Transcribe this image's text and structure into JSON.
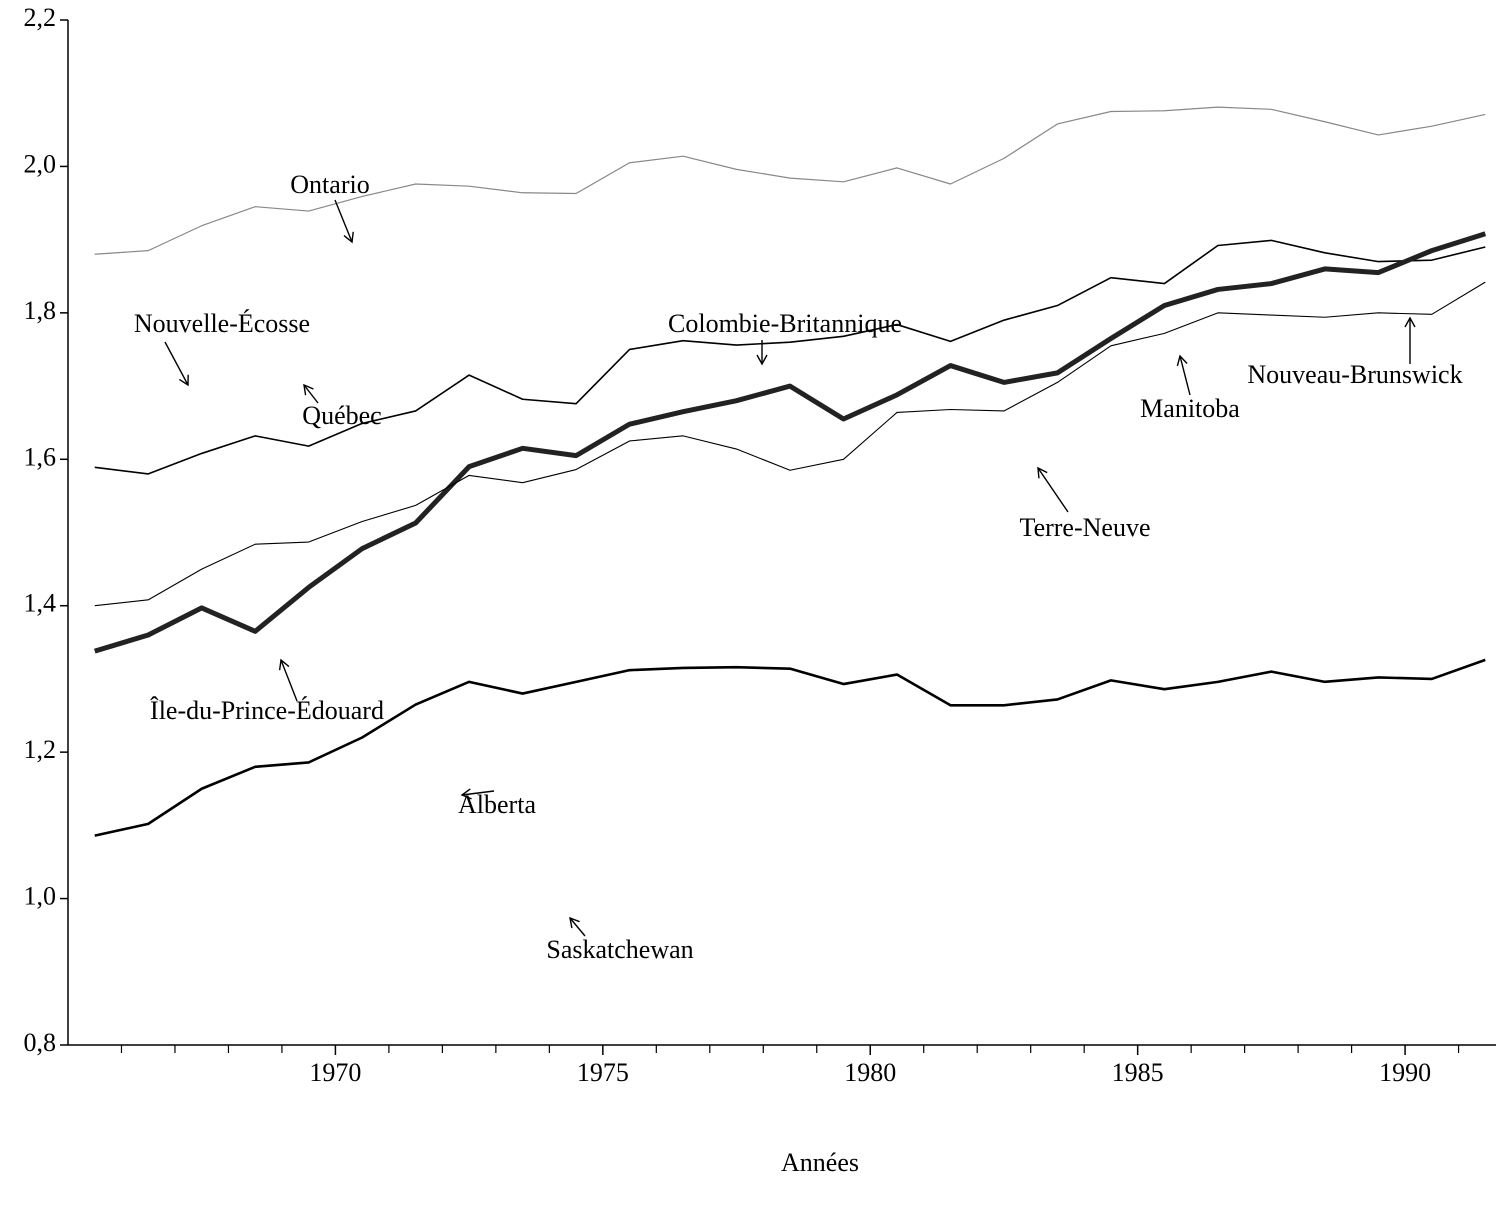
{
  "chart_data": {
    "type": "line",
    "xlabel": "Années",
    "x": [
      1965.5,
      1966.5,
      1967.5,
      1968.5,
      1969.5,
      1970.5,
      1971.5,
      1972.5,
      1973.5,
      1974.5,
      1975.5,
      1976.5,
      1977.5,
      1978.5,
      1979.5,
      1980.5,
      1981.5,
      1982.5,
      1983.5,
      1984.5,
      1985.5,
      1986.5,
      1987.5,
      1988.5,
      1989.5,
      1990.5,
      1991.5
    ],
    "series": [
      {
        "color": "#888888",
        "width": 1.2,
        "values": [
          1.88,
          1.885,
          1.919,
          1.945,
          1.939,
          1.959,
          1.976,
          1.973,
          1.964,
          1.963,
          2.005,
          2.014,
          1.996,
          1.984,
          1.979,
          1.998,
          1.976,
          2.011,
          2.058,
          2.075,
          2.076,
          2.081,
          2.078,
          2.061,
          2.043,
          2.055,
          2.071
        ]
      },
      {
        "color": "#000000",
        "width": 1.6,
        "values": [
          1.589,
          1.58,
          1.608,
          1.632,
          1.618,
          1.649,
          1.666,
          1.715,
          1.682,
          1.676,
          1.75,
          1.762,
          1.756,
          1.76,
          1.768,
          1.784,
          1.761,
          1.79,
          1.81,
          1.848,
          1.84,
          1.892,
          1.899,
          1.882,
          1.87,
          1.872,
          1.89
        ]
      },
      {
        "color": "#222222",
        "width": 5,
        "values": [
          1.338,
          1.36,
          1.397,
          1.365,
          1.425,
          1.478,
          1.513,
          1.59,
          1.615,
          1.605,
          1.648,
          1.665,
          1.68,
          1.7,
          1.655,
          1.688,
          1.728,
          1.705,
          1.718,
          1.765,
          1.81,
          1.832,
          1.84,
          1.86,
          1.855,
          1.885,
          1.908
        ]
      },
      {
        "color": "#000000",
        "width": 1.1,
        "values": [
          1.4,
          1.408,
          1.45,
          1.484,
          1.487,
          1.515,
          1.537,
          1.578,
          1.568,
          1.586,
          1.625,
          1.632,
          1.614,
          1.585,
          1.6,
          1.664,
          1.668,
          1.666,
          1.705,
          1.755,
          1.772,
          1.8,
          1.797,
          1.794,
          1.8,
          1.798,
          1.842
        ]
      },
      {
        "color": "#000000",
        "width": 2.6,
        "values": [
          1.086,
          1.102,
          1.15,
          1.18,
          1.186,
          1.22,
          1.265,
          1.296,
          1.28,
          1.296,
          1.312,
          1.315,
          1.316,
          1.314,
          1.293,
          1.306,
          1.264,
          1.264,
          1.272,
          1.298,
          1.286,
          1.296,
          1.31,
          1.296,
          1.302,
          1.3,
          1.326
        ]
      }
    ],
    "xlim": [
      1965,
      1991.7
    ],
    "xticks": [
      1970,
      1975,
      1980,
      1985,
      1990
    ],
    "xminorticks": [
      1966,
      1967,
      1968,
      1969,
      1971,
      1972,
      1973,
      1974,
      1976,
      1977,
      1978,
      1979,
      1981,
      1982,
      1983,
      1984,
      1986,
      1987,
      1988,
      1989,
      1991
    ],
    "ylim": [
      0.8,
      2.2
    ],
    "yticks": [
      {
        "value": 0.8,
        "label": "0,8"
      },
      {
        "value": 1.0,
        "label": "1,0"
      },
      {
        "value": 1.2,
        "label": "1,2"
      },
      {
        "value": 1.4,
        "label": "1,4"
      },
      {
        "value": 1.6,
        "label": "1,6"
      },
      {
        "value": 1.8,
        "label": "1,8"
      },
      {
        "value": 2.0,
        "label": "2,0"
      },
      {
        "value": 2.2,
        "label": "2,2"
      }
    ],
    "annotations": [
      "Ontario",
      "Nouvelle-Écosse",
      "Québec",
      "Colombie-Britannique",
      "Manitoba",
      "Nouveau-Brunswick",
      "Terre-Neuve",
      "Île-du-Prince-Édouard",
      "Alberta",
      "Saskatchewan"
    ]
  }
}
